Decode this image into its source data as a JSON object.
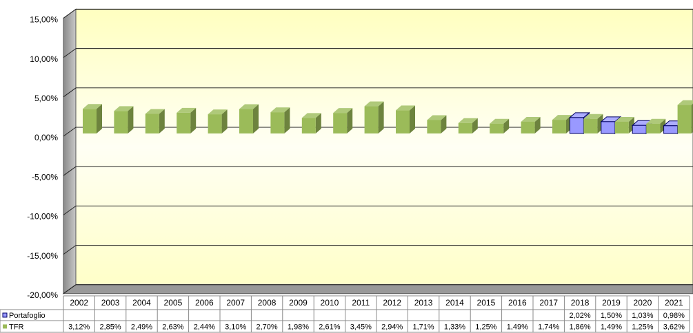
{
  "chart_data": {
    "type": "bar",
    "categories": [
      "2002",
      "2003",
      "2004",
      "2005",
      "2006",
      "2007",
      "2008",
      "2009",
      "2010",
      "2011",
      "2012",
      "2013",
      "2014",
      "2015",
      "2016",
      "2017",
      "2018",
      "2019",
      "2020",
      "2021"
    ],
    "series": [
      {
        "name": "Portafoglio",
        "color": "#9999ff",
        "values": [
          null,
          null,
          null,
          null,
          null,
          null,
          null,
          null,
          null,
          null,
          null,
          null,
          null,
          null,
          null,
          null,
          2.02,
          1.5,
          1.03,
          0.98
        ],
        "value_labels": [
          null,
          null,
          null,
          null,
          null,
          null,
          null,
          null,
          null,
          null,
          null,
          null,
          null,
          null,
          null,
          null,
          "2,02%",
          "1,50%",
          "1,03%",
          "0,98%"
        ]
      },
      {
        "name": "TFR",
        "color": "#9bbb59",
        "values": [
          3.12,
          2.85,
          2.49,
          2.63,
          2.44,
          3.1,
          2.7,
          1.98,
          2.61,
          3.45,
          2.94,
          1.71,
          1.33,
          1.25,
          1.49,
          1.74,
          1.86,
          1.49,
          1.25,
          3.62
        ],
        "value_labels": [
          "3,12%",
          "2,85%",
          "2,49%",
          "2,63%",
          "2,44%",
          "3,10%",
          "2,70%",
          "1,98%",
          "2,61%",
          "3,45%",
          "2,94%",
          "1,71%",
          "1,33%",
          "1,25%",
          "1,49%",
          "1,74%",
          "1,86%",
          "1,49%",
          "1,25%",
          "3,62%"
        ]
      }
    ],
    "ylim": [
      -20,
      15
    ],
    "yticks": [
      {
        "value": -20,
        "label": "-20,00%"
      },
      {
        "value": -15,
        "label": "-15,00%"
      },
      {
        "value": -10,
        "label": "-10,00%"
      },
      {
        "value": -5,
        "label": "-5,00%"
      },
      {
        "value": 0,
        "label": "0,00%"
      },
      {
        "value": 5,
        "label": "5,00%"
      },
      {
        "value": 10,
        "label": "10,00%"
      },
      {
        "value": 15,
        "label": "15,00%"
      }
    ],
    "grid": true,
    "legend": "table"
  }
}
